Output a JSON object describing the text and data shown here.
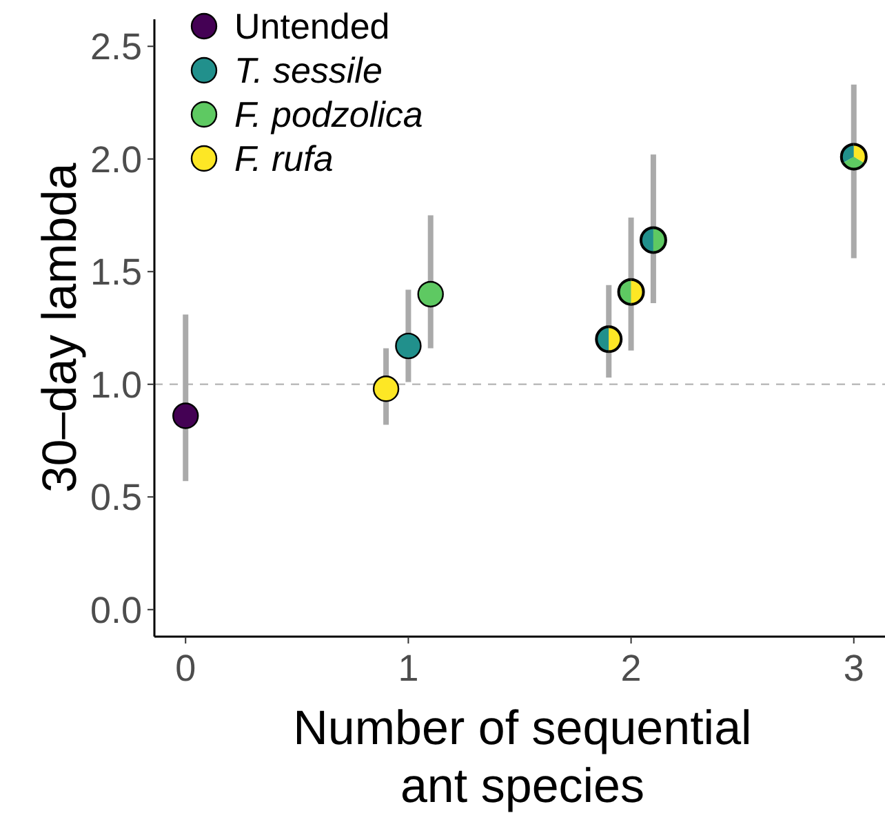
{
  "chart_data": {
    "type": "scatter",
    "xlabel": "Number of sequential\nant species",
    "ylabel": "30–day lambda",
    "xlim": [
      -0.14,
      3.14
    ],
    "ylim": [
      -0.12,
      2.62
    ],
    "xticks": [
      0,
      1,
      2,
      3
    ],
    "yticks": [
      {
        "value": 0,
        "label": "0.0"
      },
      {
        "value": 0.5,
        "label": "0.5"
      },
      {
        "value": 1,
        "label": "1.0"
      },
      {
        "value": 1.5,
        "label": "1.5"
      },
      {
        "value": 2,
        "label": "2.0"
      },
      {
        "value": 2.5,
        "label": "2.5"
      }
    ],
    "marker": "circle",
    "grid": false,
    "legend": "top left",
    "ref_lines": [
      {
        "axis": "y",
        "value": 1,
        "color": "#bbbbbb",
        "line_style": "dashed"
      }
    ],
    "series": [
      {
        "name": "Untended",
        "color": "#440154",
        "x": [
          0
        ],
        "values": [
          0.86
        ],
        "errors": [
          [
            0.57,
            1.31
          ]
        ]
      },
      {
        "name": "T. sessile",
        "color": "#21908c",
        "x": [
          1,
          1.9,
          2.1,
          3
        ],
        "values": [
          1.17,
          1.2,
          1.64,
          2.01
        ],
        "errors": [
          [
            1.01,
            1.42
          ],
          [
            1.03,
            1.44
          ],
          [
            1.36,
            2.02
          ],
          [
            1.56,
            2.33
          ]
        ]
      },
      {
        "name": "F. podzolica",
        "color": "#5ec962",
        "x": [
          1.1,
          2,
          2.1,
          3
        ],
        "values": [
          1.4,
          1.41,
          1.64,
          2.01
        ],
        "errors": [
          [
            1.16,
            1.75
          ],
          [
            1.15,
            1.74
          ],
          [
            1.36,
            2.02
          ],
          [
            1.56,
            2.33
          ]
        ]
      },
      {
        "name": "F. rufa",
        "color": "#fde725",
        "x": [
          0.9,
          1.9,
          2,
          3
        ],
        "values": [
          0.98,
          1.2,
          1.41,
          2.01
        ],
        "errors": [
          [
            0.82,
            1.16
          ],
          [
            1.03,
            1.44
          ],
          [
            1.15,
            1.74
          ],
          [
            1.56,
            2.33
          ]
        ]
      }
    ]
  }
}
